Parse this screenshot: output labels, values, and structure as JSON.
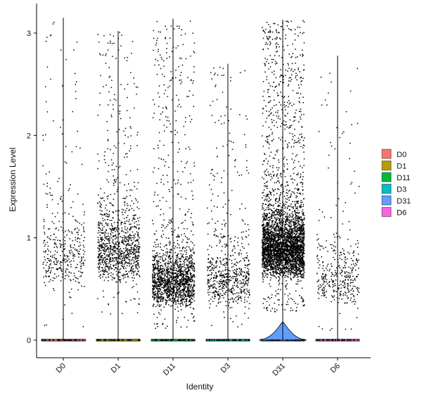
{
  "chart_data": {
    "type": "scatter",
    "subtype": "violin-with-jitter",
    "title": "",
    "xlabel": "Identity",
    "ylabel": "Expression Level",
    "categories": [
      "D0",
      "D1",
      "D11",
      "D3",
      "D31",
      "D6"
    ],
    "ylim": [
      -0.17,
      3.27
    ],
    "yticks": [
      0,
      1,
      2,
      3
    ],
    "grid": false,
    "legend": {
      "position": "right",
      "entries": [
        {
          "label": "D0",
          "color": "#F8766D"
        },
        {
          "label": "D1",
          "color": "#B79F00"
        },
        {
          "label": "D11",
          "color": "#00BA38"
        },
        {
          "label": "D3",
          "color": "#00BFC4"
        },
        {
          "label": "D31",
          "color": "#619CFF"
        },
        {
          "label": "D6",
          "color": "#F564E3"
        }
      ]
    },
    "groups": [
      {
        "name": "D0",
        "color": "#F8766D",
        "max": 3.15,
        "n_points": 380,
        "mode": 0.6,
        "spread": 0.75,
        "ymin": 0.1
      },
      {
        "name": "D1",
        "color": "#B79F00",
        "max": 3.02,
        "n_points": 1050,
        "mode": 0.7,
        "spread": 0.7,
        "ymin": 0.25
      },
      {
        "name": "D11",
        "color": "#00BA38",
        "max": 3.14,
        "n_points": 1700,
        "mode": 0.45,
        "spread": 0.45,
        "ymin": 0.12
      },
      {
        "name": "D3",
        "color": "#00BFC4",
        "max": 2.7,
        "n_points": 650,
        "mode": 0.45,
        "spread": 0.55,
        "ymin": 0.12
      },
      {
        "name": "D31",
        "color": "#619CFF",
        "max": 3.13,
        "n_points": 3800,
        "mode": 0.75,
        "spread": 0.55,
        "ymin": 0.28
      },
      {
        "name": "D6",
        "color": "#F564E3",
        "max": 2.78,
        "n_points": 380,
        "mode": 0.45,
        "spread": 0.55,
        "ymin": 0.1
      }
    ]
  }
}
